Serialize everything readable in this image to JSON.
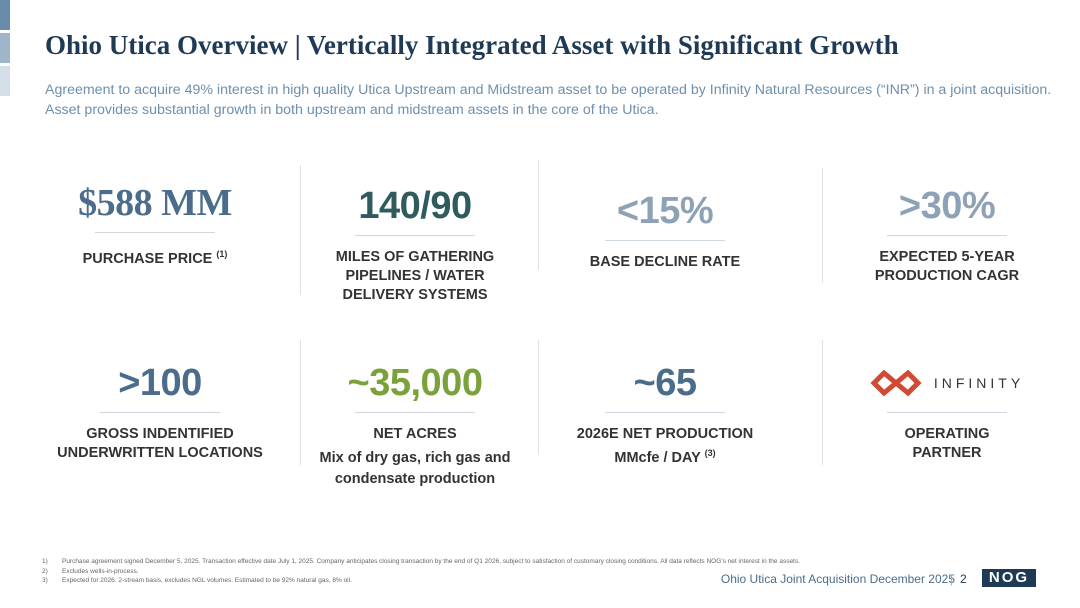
{
  "title": "Ohio Utica Overview | Vertically Integrated Asset with Significant Growth",
  "subtitle": "Agreement to acquire 49% interest in high quality Utica Upstream and Midstream asset to be operated by Infinity Natural Resources (“INR”) in a joint acquisition. Asset provides substantial growth in both upstream and midstream assets in the core of the Utica.",
  "stats": [
    {
      "value": "$588 MM",
      "color": "#4b6d8b",
      "label": [
        "PURCHASE PRICE"
      ],
      "note": "(1)"
    },
    {
      "value": "140/90",
      "color": "#2f5b5c",
      "label": [
        "MILES OF GATHERING",
        "PIPELINES / WATER",
        "DELIVERY SYSTEMS"
      ]
    },
    {
      "value": "<15%",
      "color": "#8ea2b6",
      "label": [
        "BASE DECLINE RATE"
      ]
    },
    {
      "value": ">30%",
      "color": "#8ea2b6",
      "label": [
        "EXPECTED 5-YEAR",
        "PRODUCTION CAGR"
      ]
    },
    {
      "value": ">100",
      "color": "#4b6d8b",
      "label": [
        "GROSS INDENTIFIED",
        "UNDERWRITTEN LOCATIONS"
      ]
    },
    {
      "value": "~35,000",
      "color": "#7ba23a",
      "label": [
        "NET ACRES"
      ],
      "detail": [
        "Mix of dry gas, rich gas and",
        "condensate production"
      ]
    },
    {
      "value": "~65",
      "color": "#4b6d8b",
      "label": [
        "2026E NET PRODUCTION",
        "MMcfe / DAY"
      ],
      "note": "(3)"
    },
    {
      "logo": "INFINITY",
      "label": [
        "OPERATING",
        "PARTNER"
      ]
    }
  ],
  "footnotes": [
    {
      "marker": "1)",
      "text": "Purchase agreement signed December 5, 2025.  Transaction effective date July 1, 2025. Company anticipates closing transaction by the end of Q1 2026, subject to satisfaction of customary closing conditions. All data reflects NOG’s net interest in the assets."
    },
    {
      "marker": "2)",
      "text": "Excludes wells-in-process."
    },
    {
      "marker": "3)",
      "text": "Expected for 2026.  2-stream basis, excludes NGL volumes.  Estimated to be 92% natural gas, 8% oil."
    }
  ],
  "footer": {
    "text": "Ohio Utica Joint Acquisition December 2025",
    "page": "2",
    "logo": "NOG"
  }
}
